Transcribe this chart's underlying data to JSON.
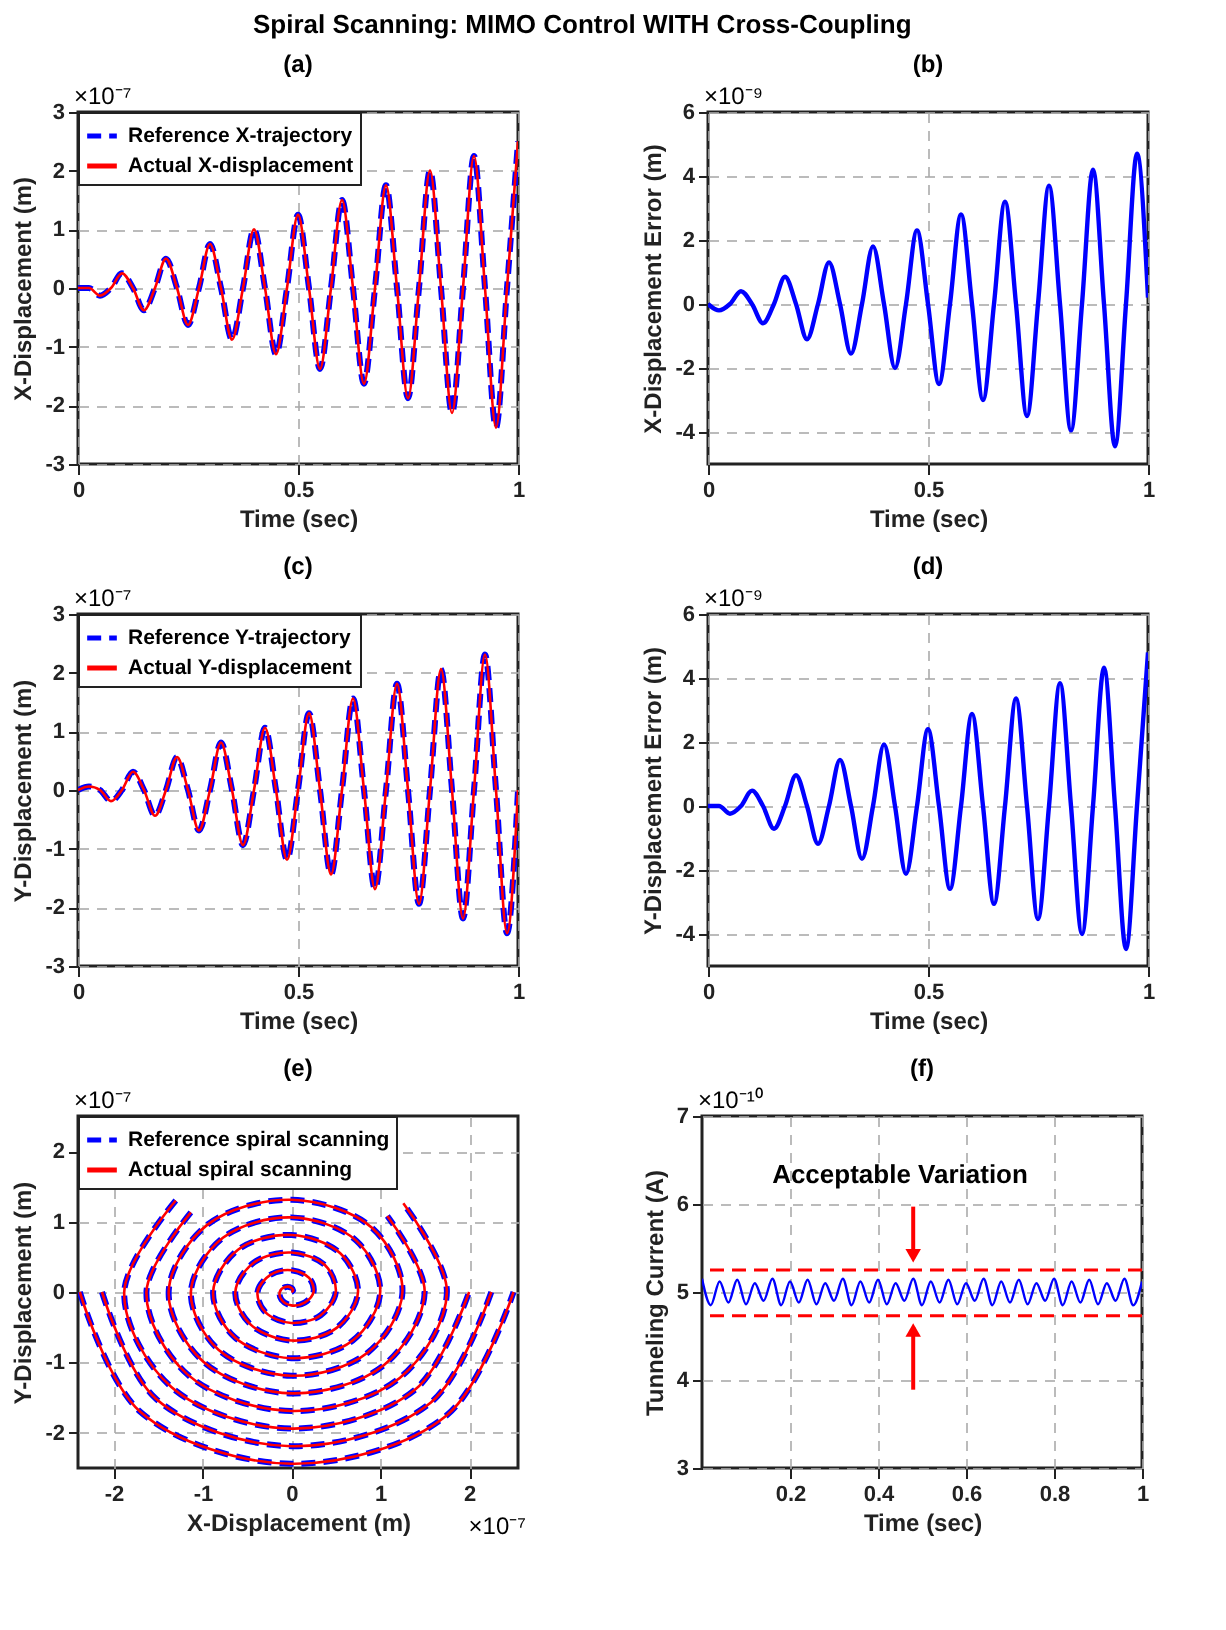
{
  "chart_data": [
    {
      "type": "other",
      "title": "Spiral Scanning: MIMO Control WITH Cross-Coupling"
    },
    {
      "type": "line",
      "title": "(a)",
      "xlabel": "Time (sec)",
      "ylabel": "X-Displacement (m)",
      "xlim": [
        0,
        1
      ],
      "xticks": [
        0,
        0.5,
        1
      ],
      "ylim": [
        -3,
        3
      ],
      "yticks": [
        -3,
        -2,
        -1,
        0,
        1,
        2,
        3
      ],
      "grid": true,
      "legend": "top left",
      "annotations": [
        "×10⁻⁷"
      ],
      "x": [
        0,
        0.025,
        0.05,
        0.075,
        0.1,
        0.125,
        0.15,
        0.175,
        0.2,
        0.225,
        0.25,
        0.275,
        0.3,
        0.325,
        0.35,
        0.375,
        0.4,
        0.425,
        0.45,
        0.475,
        0.5,
        0.525,
        0.55,
        0.575,
        0.6,
        0.625,
        0.65,
        0.675,
        0.7,
        0.725,
        0.75,
        0.775,
        0.8,
        0.825,
        0.85,
        0.875,
        0.9,
        0.925,
        0.95,
        0.975,
        1
      ],
      "series": [
        {
          "name": "Reference X-trajectory",
          "color": "#0000ff",
          "line_style": "dashed",
          "values": [
            0,
            0,
            -0.13,
            0,
            0.25,
            0,
            -0.38,
            0,
            0.5,
            0,
            -0.63,
            0,
            0.75,
            0,
            -0.88,
            0,
            1,
            0,
            -1.13,
            0,
            1.25,
            0,
            -1.38,
            0,
            1.5,
            0,
            -1.63,
            0,
            1.75,
            0,
            -1.88,
            0,
            2,
            0,
            -2.13,
            0,
            2.25,
            0,
            -2.38,
            0,
            2.5
          ]
        },
        {
          "name": "Actual X-displacement",
          "color": "#ff0000",
          "line_style": "solid",
          "values": [
            0,
            0,
            -0.13,
            0,
            0.25,
            0,
            -0.38,
            0,
            0.5,
            0,
            -0.63,
            0,
            0.75,
            0,
            -0.88,
            0,
            1,
            0,
            -1.13,
            0,
            1.25,
            0,
            -1.38,
            0,
            1.5,
            0,
            -1.63,
            0,
            1.75,
            0,
            -1.88,
            0,
            2,
            0,
            -2.13,
            0,
            2.25,
            0,
            -2.38,
            0,
            2.5
          ]
        }
      ]
    },
    {
      "type": "line",
      "title": "(b)",
      "xlabel": "Time (sec)",
      "ylabel": "X-Displacement Error (m)",
      "xlim": [
        0,
        1
      ],
      "xticks": [
        0,
        0.5,
        1
      ],
      "ylim": [
        -5,
        6
      ],
      "yticks": [
        -4,
        -2,
        0,
        2,
        4,
        6
      ],
      "grid": true,
      "line_style": "solid",
      "annotations": [
        "×10⁻⁹"
      ],
      "x": [
        0,
        0.025,
        0.05,
        0.075,
        0.1,
        0.125,
        0.15,
        0.175,
        0.2,
        0.225,
        0.25,
        0.275,
        0.3,
        0.325,
        0.35,
        0.375,
        0.4,
        0.425,
        0.45,
        0.475,
        0.5,
        0.525,
        0.55,
        0.575,
        0.6,
        0.625,
        0.65,
        0.675,
        0.7,
        0.725,
        0.75,
        0.775,
        0.8,
        0.825,
        0.85,
        0.875,
        0.9,
        0.925,
        0.95,
        0.975,
        1
      ],
      "series": [
        {
          "color": "#0000ff",
          "values": [
            0,
            -0.2,
            0,
            0.4,
            0,
            -0.6,
            0,
            0.85,
            0,
            -1.1,
            0,
            1.3,
            0,
            -1.55,
            0,
            1.8,
            0,
            -2,
            0,
            2.3,
            0,
            -2.5,
            0,
            2.8,
            0,
            -3,
            0,
            3.2,
            0,
            -3.5,
            0,
            3.7,
            0,
            -3.95,
            0,
            4.2,
            0,
            -4.45,
            0,
            4.7,
            0.2
          ]
        }
      ]
    },
    {
      "type": "line",
      "title": "(c)",
      "xlabel": "Time (sec)",
      "ylabel": "Y-Displacement (m)",
      "xlim": [
        0,
        1
      ],
      "xticks": [
        0,
        0.5,
        1
      ],
      "ylim": [
        -3,
        3
      ],
      "yticks": [
        -3,
        -2,
        -1,
        0,
        1,
        2,
        3
      ],
      "grid": true,
      "legend": "top left",
      "annotations": [
        "×10⁻⁷"
      ],
      "x": [
        0,
        0.025,
        0.05,
        0.075,
        0.1,
        0.125,
        0.15,
        0.175,
        0.2,
        0.225,
        0.25,
        0.275,
        0.3,
        0.325,
        0.35,
        0.375,
        0.4,
        0.425,
        0.45,
        0.475,
        0.5,
        0.525,
        0.55,
        0.575,
        0.6,
        0.625,
        0.65,
        0.675,
        0.7,
        0.725,
        0.75,
        0.775,
        0.8,
        0.825,
        0.85,
        0.875,
        0.9,
        0.925,
        0.95,
        0.975,
        1
      ],
      "series": [
        {
          "name": "Reference Y-trajectory",
          "color": "#0000ff",
          "line_style": "dashed",
          "values": [
            0,
            0.06,
            0,
            -0.19,
            0,
            0.31,
            0,
            -0.44,
            0,
            0.56,
            0,
            -0.69,
            0,
            0.81,
            0,
            -0.94,
            0,
            1.06,
            0,
            -1.19,
            0,
            1.31,
            0,
            -1.44,
            0,
            1.56,
            0,
            -1.69,
            0,
            1.81,
            0,
            -1.94,
            0,
            2.06,
            0,
            -2.19,
            0,
            2.31,
            0,
            -2.44,
            0
          ]
        },
        {
          "name": "Actual Y-displacement",
          "color": "#ff0000",
          "line_style": "solid",
          "values": [
            0,
            0.06,
            0,
            -0.19,
            0,
            0.31,
            0,
            -0.44,
            0,
            0.56,
            0,
            -0.69,
            0,
            0.81,
            0,
            -0.94,
            0,
            1.06,
            0,
            -1.19,
            0,
            1.31,
            0,
            -1.44,
            0,
            1.56,
            0,
            -1.69,
            0,
            1.81,
            0,
            -1.94,
            0,
            2.06,
            0,
            -2.19,
            0,
            2.31,
            0,
            -2.44,
            0
          ]
        }
      ]
    },
    {
      "type": "line",
      "title": "(d)",
      "xlabel": "Time (sec)",
      "ylabel": "Y-Displacement Error (m)",
      "xlim": [
        0,
        1
      ],
      "xticks": [
        0,
        0.5,
        1
      ],
      "ylim": [
        -5,
        6
      ],
      "yticks": [
        -4,
        -2,
        0,
        2,
        4,
        6
      ],
      "grid": true,
      "line_style": "solid",
      "annotations": [
        "×10⁻⁹"
      ],
      "x": [
        0,
        0.025,
        0.05,
        0.075,
        0.1,
        0.125,
        0.15,
        0.175,
        0.2,
        0.225,
        0.25,
        0.275,
        0.3,
        0.325,
        0.35,
        0.375,
        0.4,
        0.425,
        0.45,
        0.475,
        0.5,
        0.525,
        0.55,
        0.575,
        0.6,
        0.625,
        0.65,
        0.675,
        0.7,
        0.725,
        0.75,
        0.775,
        0.8,
        0.825,
        0.85,
        0.875,
        0.9,
        0.925,
        0.95,
        0.975,
        1
      ],
      "series": [
        {
          "color": "#0000ff",
          "values": [
            0,
            0,
            -0.24,
            0,
            0.48,
            0,
            -0.71,
            0,
            0.96,
            0,
            -1.18,
            0,
            1.44,
            0,
            -1.65,
            0,
            1.92,
            0,
            -2.12,
            0,
            2.4,
            0,
            -2.59,
            0,
            2.88,
            0,
            -3.06,
            0,
            3.36,
            0,
            -3.53,
            0,
            3.84,
            0,
            -4,
            0,
            4.32,
            0,
            -4.47,
            0,
            4.8
          ]
        }
      ]
    },
    {
      "type": "line",
      "title": "(e)",
      "xlabel": "X-Displacement (m)",
      "ylabel": "Y-Displacement (m)",
      "xlim": [
        -2.4,
        2.55
      ],
      "xticks": [
        -2,
        -1,
        0,
        1,
        2
      ],
      "ylim": [
        -2.5,
        2.5
      ],
      "yticks": [
        -2,
        -1,
        0,
        1,
        2
      ],
      "grid": true,
      "legend": "top left",
      "annotations": [
        "×10⁻⁷",
        "×10⁻⁷"
      ],
      "series": [
        {
          "name": "Reference spiral scanning",
          "color": "#0000ff",
          "line_style": "dashed",
          "x": [
            0,
            0.02,
            0,
            -0.07,
            -0.13,
            -0.11,
            0,
            0.15,
            0.25,
            0.2,
            0,
            -0.24,
            -0.38,
            -0.29,
            0,
            0.33,
            0.5,
            0.38,
            0,
            -0.42,
            -0.63,
            -0.46,
            0,
            0.51,
            0.75,
            0.55,
            0,
            -0.6,
            -0.88,
            -0.64,
            0,
            0.69,
            1,
            0.73,
            0,
            -0.77,
            -1.13,
            -0.82,
            0,
            0.86,
            1.25,
            0.91,
            0,
            -0.95,
            -1.38,
            -0.99,
            0,
            1.04,
            1.5,
            1.08,
            0,
            -1.13,
            -1.63,
            -1.17,
            0,
            1.22,
            1.75,
            1.26,
            0,
            -1.3,
            -1.88,
            -1.35,
            0,
            1.39,
            2,
            1.44,
            0,
            -1.48,
            -2.13,
            -1.52,
            0,
            1.57,
            2.25,
            1.61,
            0,
            -1.66,
            -2.38,
            -1.7,
            0,
            1.75,
            2.5
          ],
          "values": [
            0,
            0.02,
            0.06,
            0.07,
            0,
            -0.11,
            -0.19,
            -0.15,
            0,
            0.2,
            0.31,
            0.24,
            0,
            -0.29,
            -0.44,
            -0.33,
            0,
            0.38,
            0.56,
            0.42,
            0,
            -0.46,
            -0.69,
            -0.51,
            0,
            0.55,
            0.81,
            0.6,
            0,
            -0.64,
            -0.94,
            -0.69,
            0,
            0.73,
            1.06,
            0.77,
            0,
            -0.82,
            -1.19,
            -0.86,
            0,
            0.91,
            1.31,
            0.95,
            0,
            -0.99,
            -1.44,
            -1.04,
            0,
            1.08,
            null,
            1.13,
            0,
            -1.17,
            -1.69,
            -1.22,
            0,
            1.26,
            null,
            1.3,
            0,
            -1.35,
            -1.94,
            -1.39,
            0,
            null,
            null,
            null,
            0,
            -1.52,
            -2.19,
            -1.57,
            0,
            null,
            null,
            null,
            0,
            -1.7,
            -2.44,
            -1.75,
            0
          ]
        },
        {
          "name": "Actual spiral scanning",
          "color": "#ff0000",
          "line_style": "solid",
          "x": [
            0,
            0.02,
            0,
            -0.07,
            -0.13,
            -0.11,
            0,
            0.15,
            0.25,
            0.2,
            0,
            -0.24,
            -0.38,
            -0.29,
            0,
            0.33,
            0.5,
            0.38,
            0,
            -0.42,
            -0.63,
            -0.46,
            0,
            0.51,
            0.75,
            0.55,
            0,
            -0.6,
            -0.88,
            -0.64,
            0,
            0.69,
            1,
            0.73,
            0,
            -0.77,
            -1.13,
            -0.82,
            0,
            0.86,
            1.25,
            0.91,
            0,
            -0.95,
            -1.38,
            -0.99,
            0,
            1.04,
            1.5,
            1.08,
            0,
            -1.13,
            -1.63,
            -1.17,
            0,
            1.22,
            1.75,
            1.26,
            0,
            -1.3,
            -1.88,
            -1.35,
            0,
            1.39,
            2,
            1.44,
            0,
            -1.48,
            -2.13,
            -1.52,
            0,
            1.57,
            2.25,
            1.61,
            0,
            -1.66,
            -2.38,
            -1.7,
            0,
            1.75,
            2.5
          ],
          "values": [
            0,
            0.02,
            0.06,
            0.07,
            0,
            -0.11,
            -0.19,
            -0.15,
            0,
            0.2,
            0.31,
            0.24,
            0,
            -0.29,
            -0.44,
            -0.33,
            0,
            0.38,
            0.56,
            0.42,
            0,
            -0.46,
            -0.69,
            -0.51,
            0,
            0.55,
            0.81,
            0.6,
            0,
            -0.64,
            -0.94,
            -0.69,
            0,
            0.73,
            1.06,
            0.77,
            0,
            -0.82,
            -1.19,
            -0.86,
            0,
            0.91,
            1.31,
            0.95,
            0,
            -0.99,
            -1.44,
            -1.04,
            0,
            1.08,
            null,
            1.13,
            0,
            -1.17,
            -1.69,
            -1.22,
            0,
            1.26,
            null,
            1.3,
            0,
            -1.35,
            -1.94,
            -1.39,
            0,
            null,
            null,
            null,
            0,
            -1.52,
            -2.19,
            -1.57,
            0,
            null,
            null,
            null,
            0,
            -1.7,
            -2.44,
            -1.75,
            0
          ]
        }
      ]
    },
    {
      "type": "line",
      "title": "(f)",
      "xlabel": "Time (sec)",
      "ylabel": "Tunneling Current (A)",
      "xlim": [
        0,
        1
      ],
      "xticks": [
        0.2,
        0.4,
        0.6,
        0.8,
        1
      ],
      "ylim": [
        3,
        7
      ],
      "yticks": [
        3,
        4,
        5,
        6,
        7
      ],
      "grid": true,
      "line_style": "solid",
      "annotations": [
        "×10⁻¹⁰",
        "Acceptable Variation"
      ],
      "ref_lines": [
        {
          "axis": "y",
          "value": 5.25,
          "color": "#ff0000",
          "line_style": "dashed"
        },
        {
          "axis": "y",
          "value": 4.73,
          "color": "#ff0000",
          "line_style": "dashed"
        }
      ],
      "x": [
        0,
        0.02,
        0.04,
        0.06,
        0.08,
        0.1,
        0.12,
        0.14,
        0.16,
        0.18,
        0.2,
        0.22,
        0.24,
        0.26,
        0.28,
        0.3,
        0.32,
        0.34,
        0.36,
        0.38,
        0.4,
        0.42,
        0.44,
        0.46,
        0.48,
        0.5,
        0.52,
        0.54,
        0.56,
        0.58,
        0.6,
        0.62,
        0.64,
        0.66,
        0.68,
        0.7,
        0.72,
        0.74,
        0.76,
        0.78,
        0.8,
        0.82,
        0.84,
        0.86,
        0.88,
        0.9,
        0.92,
        0.94,
        0.96,
        0.98,
        1
      ],
      "series": [
        {
          "color": "#0000ff",
          "values": [
            5.15,
            4.85,
            5.12,
            4.88,
            5.14,
            4.86,
            5.1,
            4.9,
            5.15,
            4.85,
            5.12,
            4.88,
            5.14,
            4.86,
            5.1,
            4.9,
            5.15,
            4.85,
            5.12,
            4.88,
            5.14,
            4.86,
            5.1,
            4.9,
            5.15,
            4.85,
            5.12,
            4.88,
            5.14,
            4.86,
            5.1,
            4.9,
            5.15,
            4.85,
            5.12,
            4.88,
            5.14,
            4.86,
            5.1,
            4.9,
            5.15,
            4.85,
            5.12,
            4.88,
            5.14,
            4.86,
            5.1,
            4.9,
            5.15,
            4.85,
            5.12
          ]
        }
      ]
    }
  ]
}
